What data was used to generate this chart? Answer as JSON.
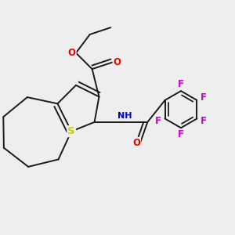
{
  "bg_color": "#eeeeee",
  "bond_color": "#1a1a1a",
  "bond_width": 1.4,
  "atom_colors": {
    "S": "#cccc00",
    "O": "#ee0000",
    "N": "#0000cc",
    "F": "#cc00cc",
    "H": "#008888",
    "C": "#1a1a1a"
  },
  "font_size": 8.5,
  "fig_width": 3.0,
  "fig_height": 3.0,
  "dpi": 100,
  "xlim": [
    0,
    10
  ],
  "ylim": [
    0,
    10
  ]
}
